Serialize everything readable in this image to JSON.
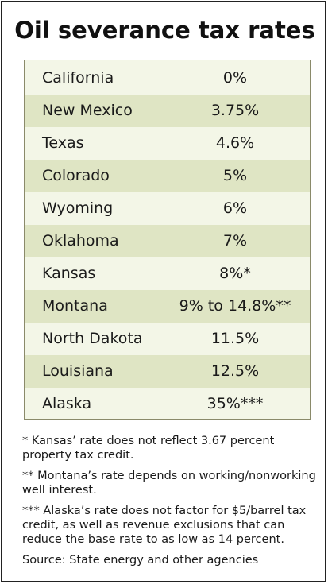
{
  "title": "Oil severance tax rates",
  "chart_data": {
    "type": "table",
    "title": "Oil severance tax rates",
    "rows": [
      {
        "state": "California",
        "rate": "0%"
      },
      {
        "state": "New Mexico",
        "rate": "3.75%"
      },
      {
        "state": "Texas",
        "rate": "4.6%"
      },
      {
        "state": "Colorado",
        "rate": "5%"
      },
      {
        "state": "Wyoming",
        "rate": "6%"
      },
      {
        "state": "Oklahoma",
        "rate": "7%"
      },
      {
        "state": "Kansas",
        "rate": "8%*"
      },
      {
        "state": "Montana",
        "rate": "9% to 14.8%**"
      },
      {
        "state": "North Dakota",
        "rate": "11.5%"
      },
      {
        "state": "Louisiana",
        "rate": "12.5%"
      },
      {
        "state": "Alaska",
        "rate": "35%***"
      }
    ]
  },
  "notes": [
    "* Kansas’ rate does not reflect 3.67 percent property tax credit.",
    "** Montana’s rate depends on working/nonworking well interest.",
    "*** Alaska’s rate does not factor for $5/barrel tax credit, as well as revenue exclusions that can reduce the base rate to as low as 14 percent."
  ],
  "source": "Source: State energy and other agencies",
  "colors": {
    "row_light": "#f3f6e7",
    "row_shaded": "#dfe5c4",
    "table_border": "#8a8a6a",
    "frame_border": "#222222"
  }
}
